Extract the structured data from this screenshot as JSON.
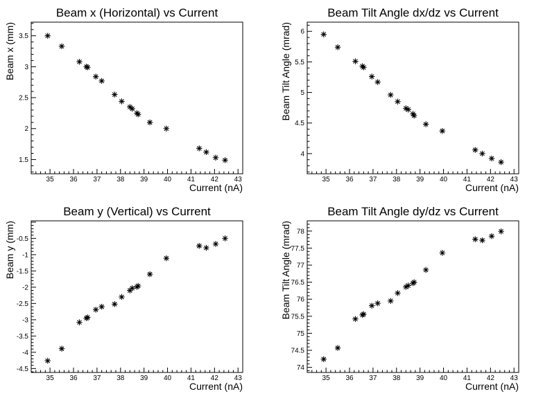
{
  "chart_data": [
    {
      "type": "scatter",
      "title": "Beam x (Horizontal) vs Current",
      "xlabel": "Current (nA)",
      "ylabel": "Beam x (mm)",
      "xlim": [
        34.2,
        43.2
      ],
      "ylim": [
        1.27,
        3.72
      ],
      "xticks": [
        35,
        36,
        37,
        38,
        39,
        40,
        41,
        42,
        43
      ],
      "yticks": [
        1.5,
        2,
        2.5,
        3,
        3.5
      ],
      "ytick_labels": [
        "1.5",
        "2",
        "2.5",
        "3",
        "3.5"
      ],
      "x": [
        34.9,
        35.5,
        36.25,
        36.55,
        36.6,
        36.95,
        37.2,
        37.75,
        38.05,
        38.4,
        38.5,
        38.7,
        38.75,
        39.25,
        39.95,
        41.35,
        41.65,
        42.05,
        42.45
      ],
      "y": [
        3.5,
        3.33,
        3.08,
        3.0,
        2.99,
        2.84,
        2.77,
        2.55,
        2.44,
        2.35,
        2.32,
        2.25,
        2.23,
        2.1,
        2.0,
        1.68,
        1.62,
        1.53,
        1.49
      ]
    },
    {
      "type": "scatter",
      "title": "Beam Tilt Angle dx/dz vs Current",
      "xlabel": "Current (nA)",
      "ylabel": "Beam Tilt Angle (mrad)",
      "xlim": [
        34.2,
        43.2
      ],
      "ylim": [
        3.67,
        6.15
      ],
      "xticks": [
        35,
        36,
        37,
        38,
        39,
        40,
        41,
        42,
        43
      ],
      "yticks": [
        4,
        4.5,
        5,
        5.5,
        6
      ],
      "ytick_labels": [
        "4",
        "4.5",
        "5",
        "5.5",
        "6"
      ],
      "x": [
        34.9,
        35.5,
        36.25,
        36.55,
        36.6,
        36.95,
        37.2,
        37.75,
        38.05,
        38.4,
        38.5,
        38.7,
        38.75,
        39.25,
        39.95,
        41.35,
        41.65,
        42.05,
        42.45
      ],
      "y": [
        5.95,
        5.74,
        5.51,
        5.43,
        5.41,
        5.26,
        5.17,
        4.96,
        4.85,
        4.74,
        4.72,
        4.65,
        4.62,
        4.48,
        4.37,
        4.06,
        4.0,
        3.92,
        3.86
      ]
    },
    {
      "type": "scatter",
      "title": "Beam y (Vertical) vs Current",
      "xlabel": "Current (nA)",
      "ylabel": "Beam y (mm)",
      "xlim": [
        34.2,
        43.2
      ],
      "ylim": [
        -4.62,
        0.04
      ],
      "xticks": [
        35,
        36,
        37,
        38,
        39,
        40,
        41,
        42,
        43
      ],
      "yticks": [
        -4.5,
        -4,
        -3.5,
        -3,
        -2.5,
        -2,
        -1.5,
        -1,
        -0.5
      ],
      "ytick_labels": [
        "-4.5",
        "-4",
        "-3.5",
        "-3",
        "-2.5",
        "-2",
        "-1.5",
        "-1",
        "-0.5"
      ],
      "x": [
        34.9,
        35.5,
        36.25,
        36.55,
        36.6,
        36.95,
        37.2,
        37.75,
        38.05,
        38.4,
        38.5,
        38.7,
        38.75,
        39.25,
        39.95,
        41.35,
        41.65,
        42.05,
        42.45
      ],
      "y": [
        -4.26,
        -3.89,
        -3.08,
        -2.95,
        -2.93,
        -2.69,
        -2.6,
        -2.52,
        -2.3,
        -2.1,
        -2.03,
        -1.99,
        -1.96,
        -1.6,
        -1.11,
        -0.73,
        -0.79,
        -0.67,
        -0.5
      ]
    },
    {
      "type": "scatter",
      "title": "Beam Tilt Angle dy/dz vs Current",
      "xlabel": "Current (nA)",
      "ylabel": "Beam Tilt Angle (mrad)",
      "xlim": [
        34.2,
        43.2
      ],
      "ylim": [
        73.85,
        78.3
      ],
      "xticks": [
        35,
        36,
        37,
        38,
        39,
        40,
        41,
        42,
        43
      ],
      "yticks": [
        74,
        74.5,
        75,
        75.5,
        76,
        76.5,
        77,
        77.5,
        78
      ],
      "ytick_labels": [
        "74",
        "74.5",
        "75",
        "75.5",
        "76",
        "76.5",
        "77",
        "77.5",
        "78"
      ],
      "x": [
        34.9,
        35.5,
        36.25,
        36.55,
        36.6,
        36.95,
        37.2,
        37.75,
        38.05,
        38.4,
        38.5,
        38.7,
        38.75,
        39.25,
        39.95,
        41.35,
        41.65,
        42.05,
        42.45
      ],
      "y": [
        74.24,
        74.57,
        75.42,
        75.54,
        75.56,
        75.81,
        75.88,
        75.95,
        76.18,
        76.36,
        76.4,
        76.47,
        76.5,
        76.86,
        77.36,
        77.76,
        77.73,
        77.85,
        77.99
      ]
    }
  ]
}
